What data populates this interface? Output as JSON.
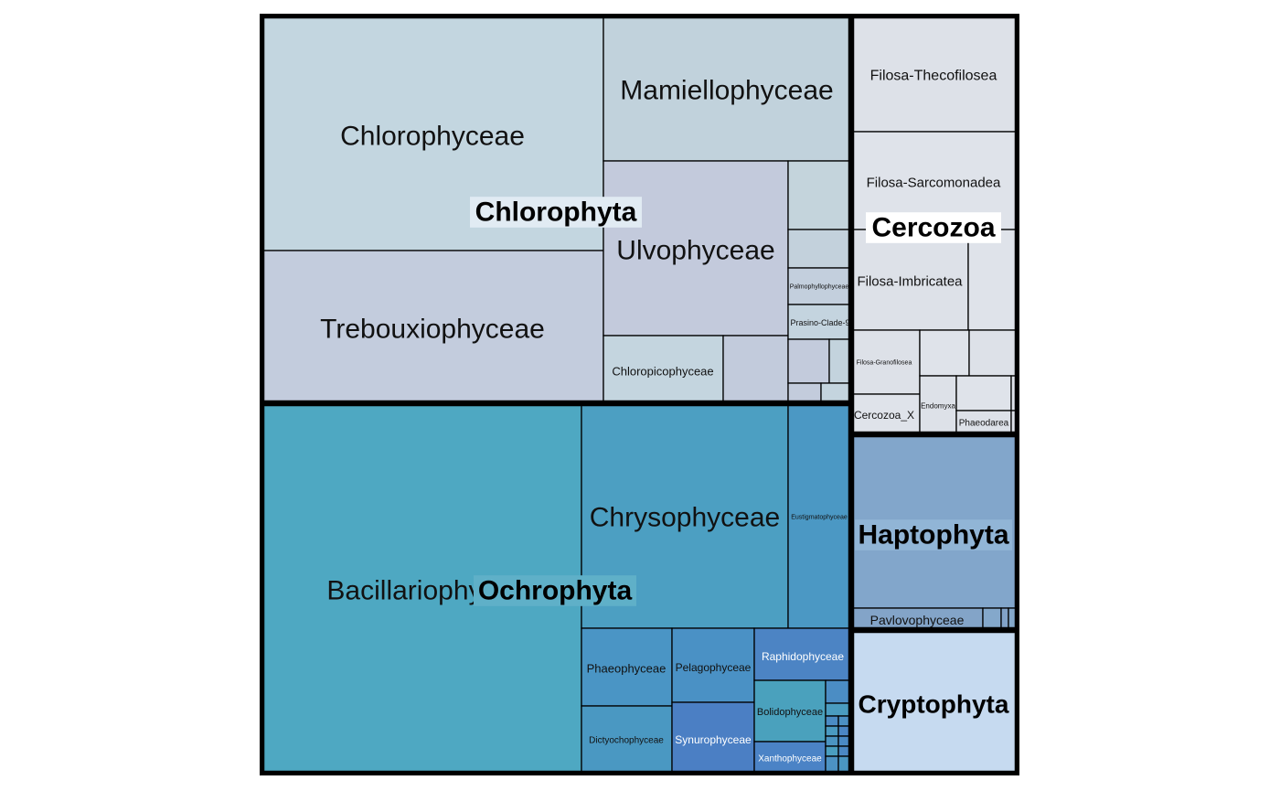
{
  "chart_data": {
    "type": "treemap",
    "colors": {
      "Chlorophyta": "#c3d3df",
      "Ochrophyta": "#4da6c1",
      "Cercozoa": "#dde1e8",
      "Haptophyta": "#82a6cb",
      "Cryptophyta": "#c6daf0",
      "border": "#000000"
    },
    "groups": [
      {
        "name": "Chlorophyta",
        "label": "Chlorophyta",
        "children": [
          {
            "name": "Chlorophyceae",
            "label": "Chlorophyceae",
            "color": "#c3d6e0"
          },
          {
            "name": "Trebouxiophyceae",
            "label": "Trebouxiophyceae",
            "color": "#c3ccdd"
          },
          {
            "name": "Mamiellophyceae",
            "label": "Mamiellophyceae",
            "color": "#c1d2dc"
          },
          {
            "name": "Ulvophyceae",
            "label": "Ulvophyceae",
            "color": "#c3cadc"
          },
          {
            "name": "Chloropicophyceae",
            "label": "Chloropicophyceae",
            "color": "#c4d5df"
          },
          {
            "name": "Chlorophyta-unlabeled-1",
            "label": "",
            "color": "#c2cbdc"
          },
          {
            "name": "Chlorophyta-unlabeled-2",
            "label": "",
            "color": "#c4d4dc"
          },
          {
            "name": "Chlorophyta-unlabeled-3",
            "label": "",
            "color": "#c3d1dc"
          },
          {
            "name": "Palmophyllophyceae",
            "label": "Palmophyllophyceae",
            "color": "#c3cfdd"
          },
          {
            "name": "Prasino-Clade-9",
            "label": "Prasino-Clade-9",
            "color": "#c4d4df"
          },
          {
            "name": "Chlorophyta-unlabeled-4",
            "label": "",
            "color": "#c3cbdc"
          },
          {
            "name": "Chlorophyta-unlabeled-5",
            "label": "",
            "color": "#c3d3dd"
          },
          {
            "name": "Chlorophyta-unlabeled-6",
            "label": "",
            "color": "#c3ccdc"
          },
          {
            "name": "Chlorophyta-unlabeled-7",
            "label": "",
            "color": "#c4d4de"
          }
        ]
      },
      {
        "name": "Ochrophyta",
        "label": "Ochrophyta",
        "children": [
          {
            "name": "Bacillariophyceae",
            "label": "Bacillariophyceae",
            "color": "#4ea8c2"
          },
          {
            "name": "Chrysophyceae",
            "label": "Chrysophyceae",
            "color": "#4c9fc2"
          },
          {
            "name": "Eustigmatophyceae",
            "label": "Eustigmatophyceae",
            "color": "#4b98c4"
          },
          {
            "name": "Phaeophyceae",
            "label": "Phaeophyceae",
            "color": "#4a95c5"
          },
          {
            "name": "Dictyochophyceae",
            "label": "Dictyochophyceae",
            "color": "#4a98c2"
          },
          {
            "name": "Pelagophyceae",
            "label": "Pelagophyceae",
            "color": "#4a91c5"
          },
          {
            "name": "Synurophyceae",
            "label": "Synurophyceae",
            "color": "#4b7fc4"
          },
          {
            "name": "Raphidophyceae",
            "label": "Raphidophyceae",
            "color": "#4c84c4"
          },
          {
            "name": "Bolidophyceae",
            "label": "Bolidophyceae",
            "color": "#4aa1bd"
          },
          {
            "name": "Xanthophyceae",
            "label": "Xanthophyceae",
            "color": "#4b83c6"
          },
          {
            "name": "Ochrophyta-unlabeled-1",
            "label": "",
            "color": "#4b8dc4"
          },
          {
            "name": "Ochrophyta-unlabeled-2",
            "label": "",
            "color": "#4a9cc0"
          },
          {
            "name": "Ochrophyta-unlabeled-3",
            "label": "",
            "color": "#4b8bc4"
          },
          {
            "name": "Ochrophyta-unlabeled-4",
            "label": "",
            "color": "#4c90c4"
          },
          {
            "name": "Ochrophyta-unlabeled-5",
            "label": "",
            "color": "#4a9ac1"
          },
          {
            "name": "Ochrophyta-unlabeled-6",
            "label": "",
            "color": "#4b86c5"
          },
          {
            "name": "Ochrophyta-unlabeled-7",
            "label": "",
            "color": "#4b94c2"
          },
          {
            "name": "Ochrophyta-unlabeled-8",
            "label": "",
            "color": "#4a8ac5"
          },
          {
            "name": "Ochrophyta-unlabeled-9",
            "label": "",
            "color": "#4a9ec0"
          },
          {
            "name": "Ochrophyta-unlabeled-10",
            "label": "",
            "color": "#4b88c4"
          },
          {
            "name": "Ochrophyta-unlabeled-11",
            "label": "",
            "color": "#4c92c3"
          },
          {
            "name": "Ochrophyta-unlabeled-12",
            "label": "",
            "color": "#4a96c1"
          }
        ]
      },
      {
        "name": "Cercozoa",
        "label": "Cercozoa",
        "children": [
          {
            "name": "Filosa-Thecofilosea",
            "label": "Filosa-Thecofilosea",
            "color": "#dde1e8"
          },
          {
            "name": "Filosa-Sarcomonadea",
            "label": "Filosa-Sarcomonadea",
            "color": "#dfe3ea"
          },
          {
            "name": "Filosa-Imbricatea",
            "label": "Filosa-Imbricatea",
            "color": "#dde1e8"
          },
          {
            "name": "Cercozoa-unlabeled-1",
            "label": "",
            "color": "#dfe3ea"
          },
          {
            "name": "Filosa-Granofilosea",
            "label": "Filosa-Granofilosea",
            "color": "#dde1e8"
          },
          {
            "name": "Cercozoa-unlabeled-2",
            "label": "",
            "color": "#dfe3ea"
          },
          {
            "name": "Cercozoa-unlabeled-3",
            "label": "",
            "color": "#dde1e8"
          },
          {
            "name": "Cercozoa_X",
            "label": "Cercozoa_X",
            "color": "#dfe3ea"
          },
          {
            "name": "Endomyxa",
            "label": "Endomyxa",
            "color": "#dde1e8"
          },
          {
            "name": "Cercozoa-unlabeled-4",
            "label": "",
            "color": "#dfe3ea"
          },
          {
            "name": "Phaeodarea",
            "label": "Phaeodarea",
            "color": "#dde1e8"
          },
          {
            "name": "Cercozoa-unlabeled-5",
            "label": "",
            "color": "#dfe3ea"
          },
          {
            "name": "Cercozoa-unlabeled-6",
            "label": "",
            "color": "#dde1e8"
          }
        ]
      },
      {
        "name": "Haptophyta",
        "label": "Haptophyta",
        "children": [
          {
            "name": "Haptophyta-main",
            "label": "",
            "color": "#82a6cb"
          },
          {
            "name": "Pavlovophyceae",
            "label": "Pavlovophyceae",
            "color": "#83a4c8"
          },
          {
            "name": "Haptophyta-unlabeled-1",
            "label": "",
            "color": "#84a8cb"
          },
          {
            "name": "Haptophyta-unlabeled-2",
            "label": "",
            "color": "#82a3c8"
          },
          {
            "name": "Haptophyta-unlabeled-3",
            "label": "",
            "color": "#84a8cb"
          }
        ]
      },
      {
        "name": "Cryptophyta",
        "label": "Cryptophyta",
        "children": [
          {
            "name": "Cryptophyta-main",
            "label": "",
            "color": "#c6daf0"
          }
        ]
      }
    ]
  }
}
